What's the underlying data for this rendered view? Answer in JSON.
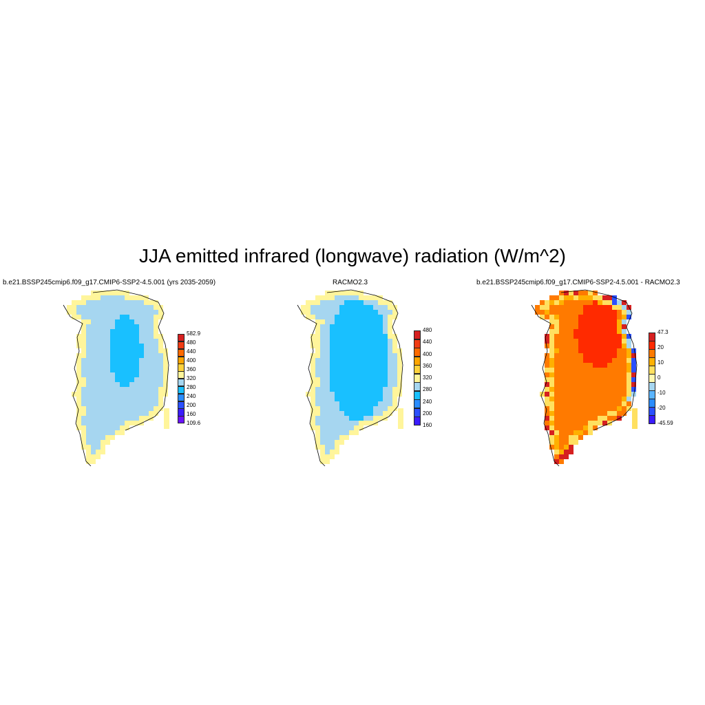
{
  "title": "JJA emitted infrared (longwave) radiation (W/m^2)",
  "panels": [
    {
      "id": "model",
      "title": "b.e21.BSSP245cmip6.f09_g17.CMIP6-SSP2-4.5.001 (yrs 2035-2059)",
      "colorbar": {
        "labels": [
          "582.9",
          "480",
          "440",
          "400",
          "360",
          "320",
          "280",
          "240",
          "200",
          "160",
          "109.6"
        ],
        "colors": [
          "#d62020",
          "#f03c14",
          "#ff6a00",
          "#ffa500",
          "#ffd23c",
          "#fff59b",
          "#a6d6f0",
          "#19c0ff",
          "#2a8cff",
          "#2b50ff",
          "#3a1cff",
          "#6a12ff"
        ]
      }
    },
    {
      "id": "racmo",
      "title": "RACMO2.3",
      "colorbar": {
        "labels": [
          "480",
          "440",
          "400",
          "360",
          "320",
          "280",
          "240",
          "200",
          "160"
        ],
        "colors": [
          "#d62020",
          "#f03c14",
          "#ff6a00",
          "#ffa500",
          "#ffd23c",
          "#fff59b",
          "#a6d6f0",
          "#19c0ff",
          "#2a8cff",
          "#2b50ff",
          "#3a1cff"
        ]
      }
    },
    {
      "id": "diff",
      "title": "b.e21.BSSP245cmip6.f09_g17.CMIP6-SSP2-4.5.001 - RACMO2.3",
      "colorbar": {
        "labels": [
          "47.3",
          "20",
          "10",
          "0",
          "-10",
          "-20",
          "-45.59"
        ],
        "colors": [
          "#d62020",
          "#ff2a00",
          "#ff7a00",
          "#ffb000",
          "#ffe060",
          "#fff8b0",
          "#a6d6f0",
          "#5ab4ff",
          "#2a8cff",
          "#2b50ff",
          "#3a1cff"
        ]
      }
    }
  ],
  "map_colors": {
    "model_fringe": "#fff59b",
    "model_sheet": "#a6d6f0",
    "model_core": "#19c0ff",
    "racmo_fringe": "#fff59b",
    "racmo_sheet": "#a6d6f0",
    "racmo_core": "#19c0ff",
    "diff_fringe": "#ffe060",
    "diff_mid": "#ff7a00",
    "diff_core": "#ff2a00",
    "diff_edge_cold": "#2b50ff",
    "diff_edge_warm": "#d62020"
  }
}
